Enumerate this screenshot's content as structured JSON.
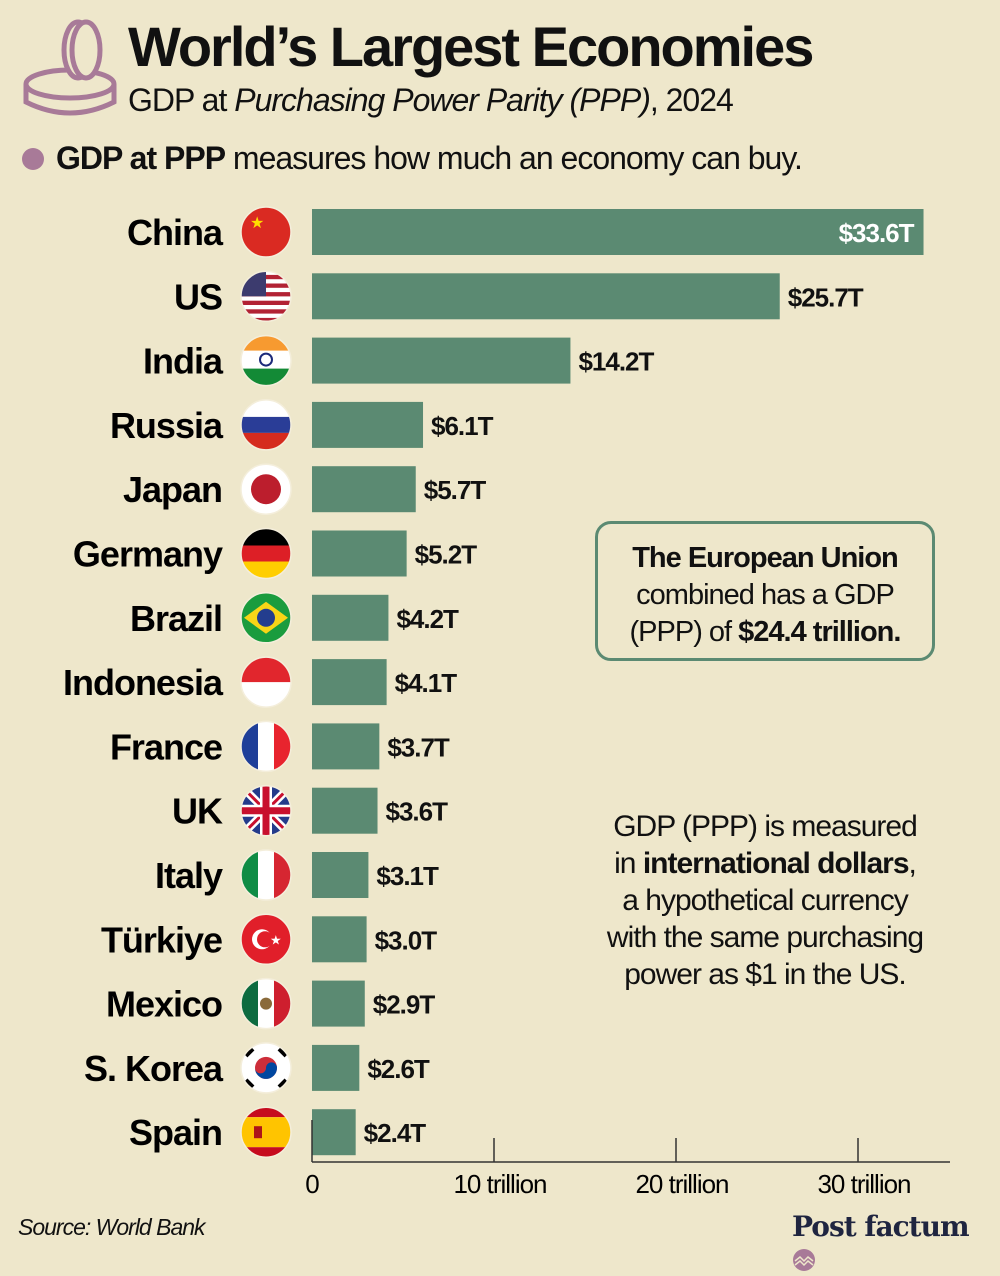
{
  "header": {
    "title": "World’s Largest Economies",
    "subtitle_plain": "GDP at ",
    "subtitle_italic": "Purchasing Power Parity (PPP)",
    "subtitle_end": ", 2024",
    "note_bold": "GDP at PPP",
    "note_rest": " measures how much an economy can buy.",
    "icon": "coin-icon"
  },
  "colors": {
    "background": "#EEE7CB",
    "bar": "#5B8A72",
    "accent": "#A87A98"
  },
  "chart_data": {
    "type": "bar",
    "orientation": "horizontal",
    "title": "World’s Largest Economies",
    "categories": [
      "China",
      "US",
      "India",
      "Russia",
      "Japan",
      "Germany",
      "Brazil",
      "Indonesia",
      "France",
      "UK",
      "Italy",
      "Türkiye",
      "Mexico",
      "S. Korea",
      "Spain"
    ],
    "flags": [
      "cn",
      "us",
      "in",
      "ru",
      "jp",
      "de",
      "br",
      "id",
      "fr",
      "gb",
      "it",
      "tr",
      "mx",
      "kr",
      "es"
    ],
    "values": [
      33.6,
      25.7,
      14.2,
      6.1,
      5.7,
      5.2,
      4.2,
      4.1,
      3.7,
      3.6,
      3.1,
      3.0,
      2.9,
      2.6,
      2.4
    ],
    "value_labels": [
      "$33.6T",
      "$25.7T",
      "$14.2T",
      "$6.1T",
      "$5.7T",
      "$5.2T",
      "$4.2T",
      "$4.1T",
      "$3.7T",
      "$3.6T",
      "$3.1T",
      "$3.0T",
      "$2.9T",
      "$2.6T",
      "$2.4T"
    ],
    "unit": "trillion international dollars",
    "xlim": [
      0,
      35
    ],
    "xticks": [
      0,
      10,
      20,
      30
    ],
    "xtick_labels": [
      "0",
      "10 trillion",
      "20 trillion",
      "30 trillion"
    ],
    "grid": false
  },
  "annotations": {
    "eu_line1": "The European Union",
    "eu_line2": "combined has a GDP",
    "eu_line3_plain": "(PPP) of ",
    "eu_line3_bold": "$24.4 trillion.",
    "ppp_line1": "GDP (PPP) is measured",
    "ppp_line2_plain": "in ",
    "ppp_line2_bold": "international dollars",
    "ppp_line2_end": ",",
    "ppp_line3": "a hypothetical currency",
    "ppp_line4": "with the same purchasing",
    "ppp_line5": "power as $1 in the US."
  },
  "footer": {
    "source": "Source: World Bank",
    "brand": "Post factum"
  }
}
